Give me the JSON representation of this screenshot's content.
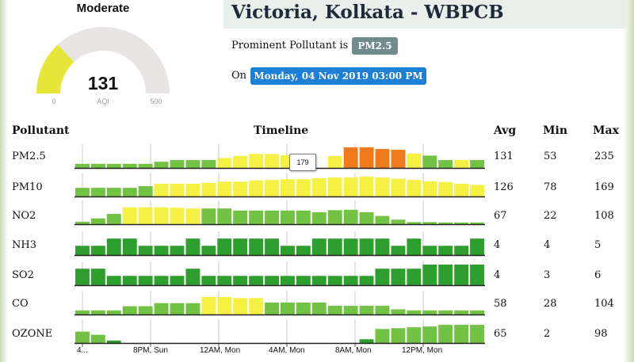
{
  "gauge": {
    "category": "Moderate",
    "value": "131",
    "unit": "AQI",
    "min": "0",
    "max": "500",
    "fill_fraction": 0.262,
    "fill_color": "#e6e63a",
    "track_color": "#e8e4e4"
  },
  "station": {
    "title": "Victoria, Kolkata - WBPCB"
  },
  "prominent": {
    "label": "Prominent Pollutant is",
    "value": "PM2.5"
  },
  "timestamp": {
    "label": "On",
    "value": "Monday, 04 Nov 2019 03:00 PM"
  },
  "table": {
    "headers": {
      "pollutant": "Pollutant",
      "timeline": "Timeline",
      "avg": "Avg",
      "min": "Min",
      "max": "Max"
    },
    "tooltip": "179",
    "time_labels": [
      "4...",
      "8PM, Sun",
      "12AM, Mon",
      "4AM, Mon",
      "8AM, Mon",
      "12PM, Mon"
    ],
    "colors": {
      "good": "#3aa83a",
      "satisfactory": "#2e9e2e",
      "light_green": "#72c243",
      "yellow": "#f4f044",
      "orange": "#f07a1c"
    },
    "rows": [
      {
        "name": "PM2.5",
        "avg": "131",
        "min": "53",
        "max": "235",
        "bars": [
          {
            "v": 0.2,
            "c": "light_green"
          },
          {
            "v": 0.2,
            "c": "light_green"
          },
          {
            "v": 0.2,
            "c": "light_green"
          },
          {
            "v": 0.2,
            "c": "light_green"
          },
          {
            "v": 0.2,
            "c": "light_green"
          },
          {
            "v": 0.3,
            "c": "light_green"
          },
          {
            "v": 0.38,
            "c": "light_green"
          },
          {
            "v": 0.38,
            "c": "light_green"
          },
          {
            "v": 0.38,
            "c": "light_green"
          },
          {
            "v": 0.48,
            "c": "yellow"
          },
          {
            "v": 0.58,
            "c": "yellow"
          },
          {
            "v": 0.68,
            "c": "yellow"
          },
          {
            "v": 0.68,
            "c": "yellow"
          },
          {
            "v": 0.62,
            "c": "yellow"
          },
          {
            "v": 0.0,
            "c": "yellow"
          },
          {
            "v": 0.0,
            "c": "yellow"
          },
          {
            "v": 0.58,
            "c": "yellow"
          },
          {
            "v": 1.0,
            "c": "orange"
          },
          {
            "v": 1.0,
            "c": "orange"
          },
          {
            "v": 0.92,
            "c": "orange"
          },
          {
            "v": 0.88,
            "c": "orange"
          },
          {
            "v": 0.7,
            "c": "yellow"
          },
          {
            "v": 0.6,
            "c": "light_green"
          },
          {
            "v": 0.38,
            "c": "light_green"
          },
          {
            "v": 0.38,
            "c": "yellow"
          },
          {
            "v": 0.38,
            "c": "light_green"
          }
        ]
      },
      {
        "name": "PM10",
        "avg": "126",
        "min": "78",
        "max": "169",
        "bars": [
          {
            "v": 0.42,
            "c": "light_green"
          },
          {
            "v": 0.42,
            "c": "light_green"
          },
          {
            "v": 0.42,
            "c": "light_green"
          },
          {
            "v": 0.42,
            "c": "light_green"
          },
          {
            "v": 0.5,
            "c": "light_green"
          },
          {
            "v": 0.62,
            "c": "yellow"
          },
          {
            "v": 0.62,
            "c": "yellow"
          },
          {
            "v": 0.62,
            "c": "yellow"
          },
          {
            "v": 0.66,
            "c": "yellow"
          },
          {
            "v": 0.72,
            "c": "yellow"
          },
          {
            "v": 0.72,
            "c": "yellow"
          },
          {
            "v": 0.78,
            "c": "yellow"
          },
          {
            "v": 0.8,
            "c": "yellow"
          },
          {
            "v": 0.84,
            "c": "yellow"
          },
          {
            "v": 0.84,
            "c": "yellow"
          },
          {
            "v": 0.88,
            "c": "yellow"
          },
          {
            "v": 0.92,
            "c": "yellow"
          },
          {
            "v": 0.92,
            "c": "yellow"
          },
          {
            "v": 0.96,
            "c": "yellow"
          },
          {
            "v": 0.92,
            "c": "yellow"
          },
          {
            "v": 0.86,
            "c": "yellow"
          },
          {
            "v": 0.8,
            "c": "yellow"
          },
          {
            "v": 0.74,
            "c": "yellow"
          },
          {
            "v": 0.7,
            "c": "yellow"
          },
          {
            "v": 0.62,
            "c": "yellow"
          },
          {
            "v": 0.56,
            "c": "yellow"
          }
        ]
      },
      {
        "name": "NO2",
        "avg": "67",
        "min": "22",
        "max": "108",
        "bars": [
          {
            "v": 0.12,
            "c": "light_green"
          },
          {
            "v": 0.28,
            "c": "light_green"
          },
          {
            "v": 0.5,
            "c": "light_green"
          },
          {
            "v": 0.82,
            "c": "yellow"
          },
          {
            "v": 0.82,
            "c": "yellow"
          },
          {
            "v": 0.82,
            "c": "yellow"
          },
          {
            "v": 0.8,
            "c": "yellow"
          },
          {
            "v": 0.76,
            "c": "yellow"
          },
          {
            "v": 0.76,
            "c": "light_green"
          },
          {
            "v": 0.76,
            "c": "light_green"
          },
          {
            "v": 0.66,
            "c": "light_green"
          },
          {
            "v": 0.66,
            "c": "light_green"
          },
          {
            "v": 0.66,
            "c": "light_green"
          },
          {
            "v": 0.66,
            "c": "light_green"
          },
          {
            "v": 0.66,
            "c": "light_green"
          },
          {
            "v": 0.58,
            "c": "light_green"
          },
          {
            "v": 0.68,
            "c": "light_green"
          },
          {
            "v": 0.7,
            "c": "light_green"
          },
          {
            "v": 0.58,
            "c": "light_green"
          },
          {
            "v": 0.4,
            "c": "light_green"
          },
          {
            "v": 0.22,
            "c": "light_green"
          },
          {
            "v": 0.1,
            "c": "light_green"
          },
          {
            "v": 0.1,
            "c": "light_green"
          },
          {
            "v": 0.08,
            "c": "light_green"
          },
          {
            "v": 0.06,
            "c": "light_green"
          },
          {
            "v": 0.06,
            "c": "light_green"
          }
        ]
      },
      {
        "name": "NH3",
        "avg": "4",
        "min": "4",
        "max": "5",
        "bars": [
          {
            "v": 0.45,
            "c": "satisfactory"
          },
          {
            "v": 0.45,
            "c": "satisfactory"
          },
          {
            "v": 0.8,
            "c": "satisfactory"
          },
          {
            "v": 0.8,
            "c": "satisfactory"
          },
          {
            "v": 0.45,
            "c": "satisfactory"
          },
          {
            "v": 0.45,
            "c": "satisfactory"
          },
          {
            "v": 0.45,
            "c": "satisfactory"
          },
          {
            "v": 0.8,
            "c": "satisfactory"
          },
          {
            "v": 0.45,
            "c": "satisfactory"
          },
          {
            "v": 0.8,
            "c": "satisfactory"
          },
          {
            "v": 0.8,
            "c": "satisfactory"
          },
          {
            "v": 0.8,
            "c": "satisfactory"
          },
          {
            "v": 0.8,
            "c": "satisfactory"
          },
          {
            "v": 0.45,
            "c": "satisfactory"
          },
          {
            "v": 0.45,
            "c": "satisfactory"
          },
          {
            "v": 0.8,
            "c": "satisfactory"
          },
          {
            "v": 0.8,
            "c": "satisfactory"
          },
          {
            "v": 0.8,
            "c": "satisfactory"
          },
          {
            "v": 0.8,
            "c": "satisfactory"
          },
          {
            "v": 0.8,
            "c": "satisfactory"
          },
          {
            "v": 0.45,
            "c": "satisfactory"
          },
          {
            "v": 0.8,
            "c": "satisfactory"
          },
          {
            "v": 0.45,
            "c": "satisfactory"
          },
          {
            "v": 0.45,
            "c": "satisfactory"
          },
          {
            "v": 0.45,
            "c": "satisfactory"
          },
          {
            "v": 0.8,
            "c": "satisfactory"
          }
        ]
      },
      {
        "name": "SO2",
        "avg": "4",
        "min": "3",
        "max": "6",
        "bars": [
          {
            "v": 0.8,
            "c": "satisfactory"
          },
          {
            "v": 0.8,
            "c": "satisfactory"
          },
          {
            "v": 0.45,
            "c": "satisfactory"
          },
          {
            "v": 0.45,
            "c": "satisfactory"
          },
          {
            "v": 0.45,
            "c": "satisfactory"
          },
          {
            "v": 0.45,
            "c": "satisfactory"
          },
          {
            "v": 0.45,
            "c": "satisfactory"
          },
          {
            "v": 0.8,
            "c": "satisfactory"
          },
          {
            "v": 0.45,
            "c": "satisfactory"
          },
          {
            "v": 0.45,
            "c": "satisfactory"
          },
          {
            "v": 0.45,
            "c": "satisfactory"
          },
          {
            "v": 0.45,
            "c": "satisfactory"
          },
          {
            "v": 0.45,
            "c": "satisfactory"
          },
          {
            "v": 0.45,
            "c": "satisfactory"
          },
          {
            "v": 0.45,
            "c": "satisfactory"
          },
          {
            "v": 0.45,
            "c": "satisfactory"
          },
          {
            "v": 0.45,
            "c": "satisfactory"
          },
          {
            "v": 0.45,
            "c": "satisfactory"
          },
          {
            "v": 0.45,
            "c": "satisfactory"
          },
          {
            "v": 0.8,
            "c": "satisfactory"
          },
          {
            "v": 0.8,
            "c": "satisfactory"
          },
          {
            "v": 0.8,
            "c": "satisfactory"
          },
          {
            "v": 1.0,
            "c": "satisfactory"
          },
          {
            "v": 1.0,
            "c": "satisfactory"
          },
          {
            "v": 1.0,
            "c": "satisfactory"
          },
          {
            "v": 1.0,
            "c": "satisfactory"
          }
        ]
      },
      {
        "name": "CO",
        "avg": "58",
        "min": "28",
        "max": "104",
        "bars": [
          {
            "v": 0.2,
            "c": "light_green"
          },
          {
            "v": 0.2,
            "c": "light_green"
          },
          {
            "v": 0.2,
            "c": "light_green"
          },
          {
            "v": 0.4,
            "c": "light_green"
          },
          {
            "v": 0.4,
            "c": "light_green"
          },
          {
            "v": 0.55,
            "c": "light_green"
          },
          {
            "v": 0.55,
            "c": "light_green"
          },
          {
            "v": 0.55,
            "c": "light_green"
          },
          {
            "v": 0.85,
            "c": "yellow"
          },
          {
            "v": 0.85,
            "c": "yellow"
          },
          {
            "v": 0.8,
            "c": "yellow"
          },
          {
            "v": 0.8,
            "c": "yellow"
          },
          {
            "v": 0.58,
            "c": "light_green"
          },
          {
            "v": 0.58,
            "c": "light_green"
          },
          {
            "v": 0.58,
            "c": "light_green"
          },
          {
            "v": 0.58,
            "c": "light_green"
          },
          {
            "v": 0.42,
            "c": "light_green"
          },
          {
            "v": 0.42,
            "c": "light_green"
          },
          {
            "v": 0.42,
            "c": "light_green"
          },
          {
            "v": 0.42,
            "c": "light_green"
          },
          {
            "v": 0.25,
            "c": "light_green"
          },
          {
            "v": 0.2,
            "c": "light_green"
          },
          {
            "v": 0.2,
            "c": "light_green"
          },
          {
            "v": 0.2,
            "c": "light_green"
          },
          {
            "v": 0.2,
            "c": "light_green"
          },
          {
            "v": 0.2,
            "c": "light_green"
          }
        ]
      },
      {
        "name": "OZONE",
        "avg": "65",
        "min": "2",
        "max": "98",
        "bars": [
          {
            "v": 0.55,
            "c": "light_green"
          },
          {
            "v": 0.4,
            "c": "light_green"
          },
          {
            "v": 0.12,
            "c": "satisfactory"
          },
          {
            "v": 0.0,
            "c": "light_green"
          },
          {
            "v": 0.0,
            "c": "light_green"
          },
          {
            "v": 0.0,
            "c": "light_green"
          },
          {
            "v": 0.0,
            "c": "light_green"
          },
          {
            "v": 0.0,
            "c": "light_green"
          },
          {
            "v": 0.0,
            "c": "light_green"
          },
          {
            "v": 0.0,
            "c": "light_green"
          },
          {
            "v": 0.0,
            "c": "light_green"
          },
          {
            "v": 0.0,
            "c": "light_green"
          },
          {
            "v": 0.0,
            "c": "light_green"
          },
          {
            "v": 0.0,
            "c": "light_green"
          },
          {
            "v": 0.0,
            "c": "light_green"
          },
          {
            "v": 0.0,
            "c": "light_green"
          },
          {
            "v": 0.0,
            "c": "light_green"
          },
          {
            "v": 0.0,
            "c": "light_green"
          },
          {
            "v": 0.18,
            "c": "satisfactory"
          },
          {
            "v": 0.68,
            "c": "light_green"
          },
          {
            "v": 0.72,
            "c": "light_green"
          },
          {
            "v": 0.76,
            "c": "light_green"
          },
          {
            "v": 0.8,
            "c": "light_green"
          },
          {
            "v": 0.88,
            "c": "light_green"
          },
          {
            "v": 0.88,
            "c": "light_green"
          },
          {
            "v": 0.88,
            "c": "light_green"
          }
        ]
      }
    ]
  }
}
